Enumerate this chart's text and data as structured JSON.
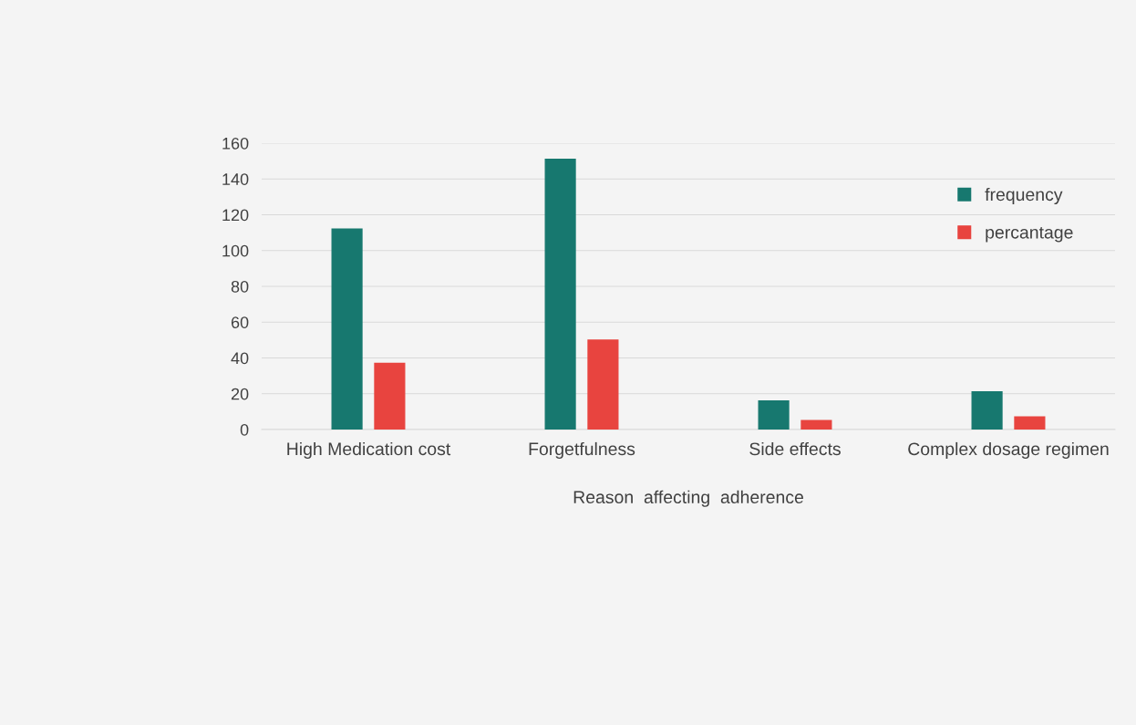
{
  "chart_data": {
    "type": "bar",
    "categories": [
      "High Medication cost",
      "Forgetfulness",
      "Side effects",
      "Complex dosage regimen"
    ],
    "series": [
      {
        "name": "frequency",
        "color": "#17786f",
        "values": [
          112,
          151,
          16,
          21
        ]
      },
      {
        "name": "percantage",
        "color": "#e8443f",
        "values": [
          37,
          50,
          5,
          7
        ]
      }
    ],
    "xlabel": "Reason  affecting  adherence",
    "ylim": [
      0,
      160
    ],
    "yticks": [
      0,
      20,
      40,
      60,
      80,
      100,
      120,
      140,
      160
    ],
    "grid": "y",
    "legend": "top right"
  }
}
